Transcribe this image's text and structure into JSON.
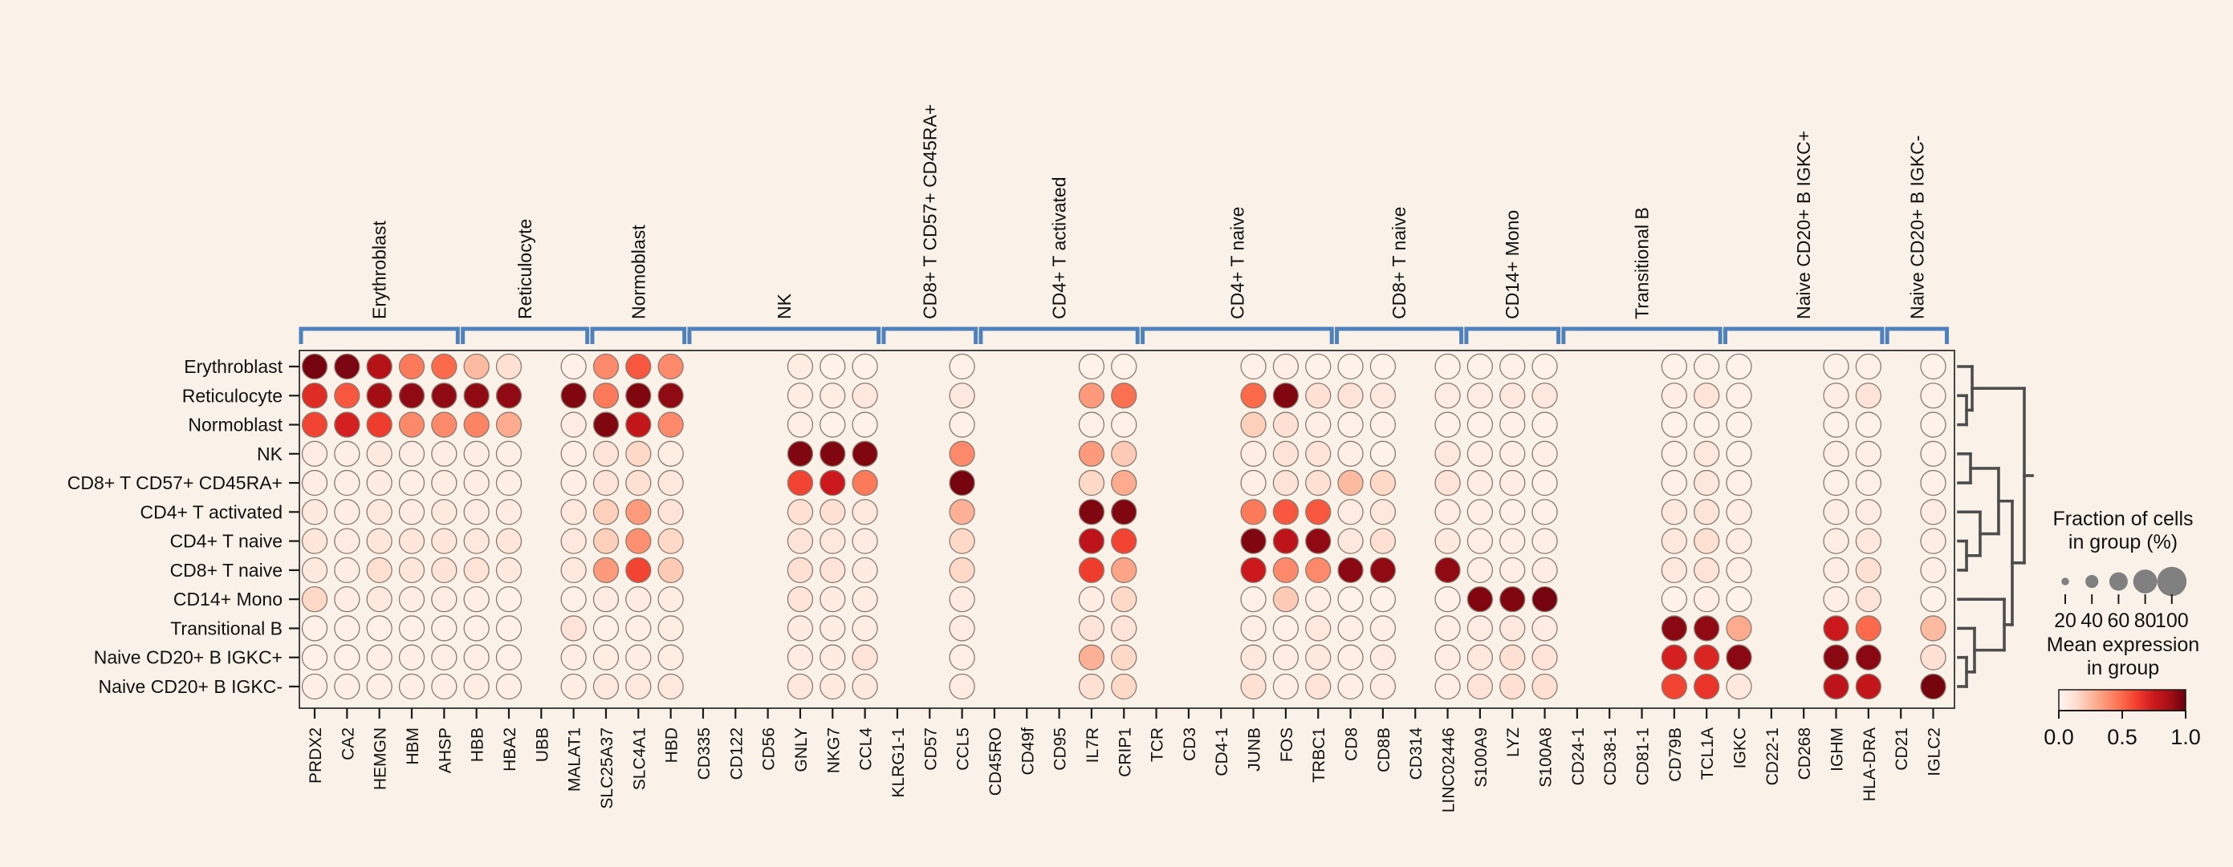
{
  "chart_data": {
    "type": "dotplot",
    "description": "Dot plot of mean gene expression per cell-type group (color) and fraction of expressing cells (dot size); scanpy-style with marker-gene group brackets and row dendrogram",
    "rows": [
      "Erythroblast",
      "Reticulocyte",
      "Normoblast",
      "NK",
      "CD8+ T CD57+ CD45RA+",
      "CD4+ T activated",
      "CD4+ T naive",
      "CD8+ T naive",
      "CD14+ Mono",
      "Transitional B",
      "Naive CD20+ B IGKC+",
      "Naive CD20+ B IGKC-"
    ],
    "genes": [
      "PRDX2",
      "CA2",
      "HEMGN",
      "HBM",
      "AHSP",
      "HBB",
      "HBA2",
      "UBB",
      "MALAT1",
      "SLC25A37",
      "SLC4A1",
      "HBD",
      "CD335",
      "CD122",
      "CD56",
      "GNLY",
      "NKG7",
      "CCL4",
      "KLRG1-1",
      "CD57",
      "CCL5",
      "CD45RO",
      "CD49f",
      "CD95",
      "IL7R",
      "CRIP1",
      "TCR",
      "CD3",
      "CD4-1",
      "JUNB",
      "FOS",
      "TRBC1",
      "CD8",
      "CD8B",
      "CD314",
      "LINC02446",
      "S100A9",
      "LYZ",
      "S100A8",
      "CD24-1",
      "CD38-1",
      "CD81-1",
      "CD79B",
      "TCL1A",
      "IGKC",
      "CD22-1",
      "CD268",
      "IGHM",
      "HLA-DRA",
      "CD21",
      "IGLC2"
    ],
    "gene_groups": [
      {
        "label": "Erythroblast",
        "start": 0,
        "end": 4
      },
      {
        "label": "Reticulocyte",
        "start": 5,
        "end": 8
      },
      {
        "label": "Normoblast",
        "start": 9,
        "end": 11
      },
      {
        "label": "NK",
        "start": 12,
        "end": 17
      },
      {
        "label": "CD8+ T CD57+ CD45RA+",
        "start": 18,
        "end": 20
      },
      {
        "label": "CD4+ T activated",
        "start": 21,
        "end": 25
      },
      {
        "label": "CD4+ T naive",
        "start": 26,
        "end": 31
      },
      {
        "label": "CD8+ T naive",
        "start": 32,
        "end": 35
      },
      {
        "label": "CD14+ Mono",
        "start": 36,
        "end": 38
      },
      {
        "label": "Transitional B",
        "start": 39,
        "end": 43
      },
      {
        "label": "Naive CD20+ B IGKC+",
        "start": 44,
        "end": 48
      },
      {
        "label": "Naive CD20+ B IGKC-",
        "start": 49,
        "end": 50
      }
    ],
    "mean_expression": [
      [
        0.97,
        0.96,
        0.82,
        0.45,
        0.5,
        0.25,
        0.12,
        null,
        0.03,
        0.4,
        0.55,
        0.4,
        null,
        null,
        null,
        0.05,
        0.02,
        0.02,
        null,
        null,
        0.03,
        null,
        null,
        null,
        0.02,
        0.02,
        null,
        null,
        null,
        0.03,
        0.04,
        0.02,
        0.02,
        0.02,
        null,
        0.02,
        0.02,
        0.03,
        0.02,
        null,
        null,
        null,
        0.02,
        0.03,
        0.02,
        null,
        null,
        0.03,
        0.03,
        null,
        0.02
      ],
      [
        0.68,
        0.55,
        0.88,
        0.92,
        0.92,
        0.92,
        0.92,
        null,
        0.95,
        0.45,
        0.95,
        0.92,
        null,
        null,
        null,
        0.05,
        0.05,
        0.08,
        null,
        null,
        0.08,
        null,
        null,
        null,
        0.35,
        0.48,
        null,
        null,
        null,
        0.5,
        0.95,
        0.12,
        0.1,
        0.08,
        null,
        0.06,
        0.06,
        0.08,
        0.08,
        null,
        null,
        null,
        0.05,
        0.1,
        0.03,
        null,
        null,
        0.05,
        0.1,
        null,
        0.03
      ],
      [
        0.6,
        0.72,
        0.62,
        0.4,
        0.4,
        0.42,
        0.3,
        null,
        0.06,
        0.95,
        0.78,
        0.4,
        null,
        null,
        null,
        0.04,
        0.02,
        0.02,
        null,
        null,
        0.03,
        null,
        null,
        null,
        0.03,
        0.03,
        null,
        null,
        null,
        0.18,
        0.12,
        0.04,
        0.03,
        0.03,
        null,
        0.02,
        0.02,
        0.03,
        0.02,
        null,
        null,
        null,
        0.02,
        0.02,
        0.02,
        null,
        null,
        0.02,
        0.02,
        null,
        0.02
      ],
      [
        0.06,
        0.04,
        0.07,
        0.05,
        0.05,
        0.05,
        0.04,
        null,
        0.04,
        0.1,
        0.15,
        0.05,
        null,
        null,
        null,
        0.95,
        0.95,
        0.95,
        null,
        null,
        0.4,
        null,
        null,
        null,
        0.35,
        0.2,
        null,
        null,
        null,
        0.05,
        0.1,
        0.1,
        0.04,
        0.02,
        null,
        0.08,
        0.04,
        0.04,
        0.04,
        null,
        null,
        null,
        0.03,
        0.08,
        0.02,
        null,
        null,
        0.04,
        0.04,
        null,
        0.03
      ],
      [
        0.05,
        0.04,
        0.06,
        0.04,
        0.05,
        0.05,
        0.04,
        null,
        0.04,
        0.1,
        0.12,
        0.08,
        null,
        null,
        null,
        0.6,
        0.75,
        0.45,
        null,
        null,
        0.97,
        null,
        null,
        null,
        0.15,
        0.3,
        null,
        null,
        null,
        0.04,
        0.1,
        0.12,
        0.25,
        0.15,
        null,
        0.1,
        0.05,
        0.05,
        0.03,
        null,
        null,
        null,
        0.03,
        0.08,
        0.03,
        null,
        null,
        0.03,
        0.03,
        null,
        0.03
      ],
      [
        0.07,
        0.05,
        0.08,
        0.06,
        0.07,
        0.06,
        0.06,
        null,
        0.08,
        0.18,
        0.35,
        0.1,
        null,
        null,
        null,
        0.12,
        0.12,
        0.08,
        null,
        null,
        0.28,
        null,
        null,
        null,
        0.95,
        0.95,
        null,
        null,
        null,
        0.45,
        0.55,
        0.55,
        0.06,
        0.08,
        null,
        0.06,
        0.04,
        0.03,
        0.03,
        null,
        null,
        null,
        0.08,
        0.1,
        0.05,
        null,
        null,
        0.05,
        0.06,
        null,
        0.06
      ],
      [
        0.09,
        0.06,
        0.09,
        0.09,
        0.09,
        0.08,
        0.09,
        null,
        0.08,
        0.18,
        0.38,
        0.15,
        null,
        null,
        null,
        0.1,
        0.08,
        0.06,
        null,
        null,
        0.15,
        null,
        null,
        null,
        0.8,
        0.6,
        null,
        null,
        null,
        0.95,
        0.8,
        0.92,
        0.08,
        0.12,
        null,
        0.07,
        0.04,
        0.04,
        0.04,
        null,
        null,
        null,
        0.08,
        0.12,
        0.05,
        null,
        null,
        0.05,
        0.08,
        null,
        0.05
      ],
      [
        0.07,
        0.05,
        0.13,
        0.09,
        0.11,
        0.11,
        0.07,
        null,
        0.08,
        0.35,
        0.6,
        0.2,
        null,
        null,
        null,
        0.12,
        0.1,
        0.06,
        null,
        null,
        0.15,
        null,
        null,
        null,
        0.62,
        0.32,
        null,
        null,
        null,
        0.75,
        0.4,
        0.4,
        0.93,
        0.92,
        null,
        0.92,
        0.04,
        0.04,
        0.05,
        null,
        null,
        null,
        0.08,
        0.1,
        0.04,
        null,
        null,
        0.05,
        0.12,
        null,
        0.04
      ],
      [
        0.15,
        0.05,
        0.07,
        0.05,
        0.05,
        0.04,
        0.03,
        null,
        0.03,
        0.06,
        0.06,
        0.05,
        null,
        null,
        null,
        0.1,
        0.06,
        0.05,
        null,
        null,
        0.06,
        null,
        null,
        null,
        0.05,
        0.15,
        null,
        null,
        null,
        0.03,
        0.2,
        0.04,
        0.02,
        0.02,
        null,
        0.03,
        0.95,
        0.95,
        0.97,
        null,
        null,
        null,
        0.02,
        0.04,
        0.02,
        null,
        null,
        0.04,
        0.1,
        null,
        0.02
      ],
      [
        0.03,
        0.03,
        0.03,
        0.03,
        0.03,
        0.03,
        0.03,
        null,
        0.1,
        0.03,
        0.04,
        0.05,
        null,
        null,
        null,
        0.06,
        0.05,
        0.05,
        null,
        null,
        0.06,
        null,
        null,
        null,
        0.1,
        0.1,
        null,
        null,
        null,
        0.04,
        0.03,
        0.08,
        0.04,
        0.04,
        null,
        0.04,
        0.06,
        0.08,
        0.06,
        null,
        null,
        null,
        0.93,
        0.92,
        0.3,
        null,
        null,
        0.75,
        0.5,
        null,
        0.25
      ],
      [
        0.03,
        0.03,
        0.04,
        0.04,
        0.04,
        0.04,
        0.03,
        null,
        0.05,
        0.05,
        0.05,
        0.05,
        null,
        null,
        null,
        0.06,
        0.06,
        0.1,
        null,
        null,
        0.04,
        null,
        null,
        null,
        0.28,
        0.15,
        null,
        null,
        null,
        0.08,
        0.05,
        0.07,
        0.04,
        0.06,
        null,
        0.05,
        0.08,
        0.12,
        0.1,
        null,
        null,
        null,
        0.72,
        0.7,
        0.93,
        null,
        null,
        0.93,
        0.93,
        null,
        0.12
      ],
      [
        0.04,
        0.04,
        0.04,
        0.04,
        0.04,
        0.05,
        0.04,
        null,
        0.05,
        0.08,
        0.08,
        0.08,
        null,
        null,
        null,
        0.08,
        0.07,
        0.07,
        null,
        null,
        0.06,
        null,
        null,
        null,
        0.12,
        0.15,
        null,
        null,
        null,
        0.12,
        0.04,
        0.1,
        0.04,
        0.05,
        null,
        0.04,
        0.1,
        0.12,
        0.12,
        null,
        null,
        null,
        0.6,
        0.65,
        0.08,
        null,
        null,
        0.8,
        0.78,
        null,
        0.97
      ]
    ],
    "value_note": "null = gene not detected in that group (no dot drawn); displayed dots all have near-full fraction",
    "color_scale_range": [
      0.0,
      1.0
    ],
    "dendrogram": {
      "orientation": "right-of-rows",
      "segments": [
        [
          0,
          1,
          0.185,
          1
        ],
        [
          0,
          2,
          0.109,
          2
        ],
        [
          0,
          3,
          0.109,
          3
        ],
        [
          0.109,
          2,
          0.109,
          3
        ],
        [
          0.109,
          2.5,
          0.185,
          2.5
        ],
        [
          0.185,
          1,
          0.185,
          2.5
        ],
        [
          0.185,
          1.75,
          0.891,
          1.75
        ],
        [
          0,
          4,
          0.163,
          4
        ],
        [
          0,
          5,
          0.163,
          5
        ],
        [
          0.163,
          4,
          0.163,
          5
        ],
        [
          0.163,
          4.5,
          0.543,
          4.5
        ],
        [
          0,
          6,
          0.293,
          6
        ],
        [
          0,
          7,
          0.109,
          7
        ],
        [
          0,
          8,
          0.109,
          8
        ],
        [
          0.109,
          7,
          0.109,
          8
        ],
        [
          0.109,
          7.5,
          0.293,
          7.5
        ],
        [
          0.293,
          6,
          0.293,
          7.5
        ],
        [
          0.293,
          6.75,
          0.543,
          6.75
        ],
        [
          0.543,
          4.5,
          0.543,
          6.75
        ],
        [
          0.543,
          5.625,
          0.728,
          5.625
        ],
        [
          0,
          9,
          0.62,
          9
        ],
        [
          0,
          10,
          0.217,
          10
        ],
        [
          0,
          11,
          0.109,
          11
        ],
        [
          0,
          12,
          0.109,
          12
        ],
        [
          0.109,
          11,
          0.109,
          12
        ],
        [
          0.109,
          11.5,
          0.217,
          11.5
        ],
        [
          0.217,
          10,
          0.217,
          11.5
        ],
        [
          0.217,
          10.75,
          0.62,
          10.75
        ],
        [
          0.62,
          9,
          0.62,
          10.75
        ],
        [
          0.62,
          9.875,
          0.728,
          9.875
        ],
        [
          0.728,
          5.625,
          0.728,
          9.875
        ],
        [
          0.728,
          7.75,
          0.891,
          7.75
        ],
        [
          0.891,
          1.75,
          0.891,
          7.75
        ],
        [
          0.891,
          4.75,
          1,
          4.75
        ]
      ]
    }
  },
  "legend": {
    "fraction_title": [
      "Fraction of cells",
      "in group (%)"
    ],
    "fraction_ticks": [
      "20",
      "40",
      "60",
      "80",
      "100"
    ],
    "fraction_values": [
      20,
      40,
      60,
      80,
      100
    ],
    "mean_title": [
      "Mean expression",
      "in group"
    ],
    "colorbar_ticks": [
      "0.0",
      "0.5",
      "1.0"
    ]
  },
  "colors": {
    "background": "#faf2e8",
    "bracket_blue": "#4f81bd",
    "dendrogram_gray": "#4d4d4d",
    "dot_outline": "#8a7a70",
    "frame_black": "#1a1a1a",
    "text_black": "#111111",
    "legend_dot_gray": "#808080",
    "reds_colormap": [
      "#fff5f0",
      "#fee0d2",
      "#fcbba1",
      "#fc9272",
      "#fb6a4a",
      "#ef3b2c",
      "#cb181d",
      "#a50f15",
      "#67000d"
    ]
  }
}
